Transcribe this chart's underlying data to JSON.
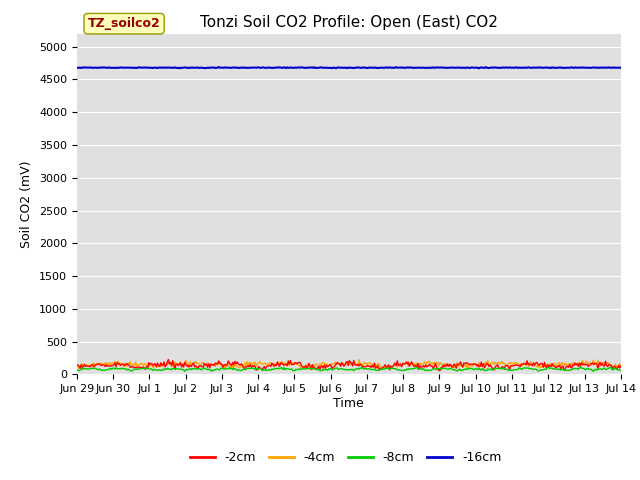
{
  "title": "Tonzi Soil CO2 Profile: Open (East) CO2",
  "ylabel": "Soil CO2 (mV)",
  "xlabel": "Time",
  "ylim": [
    0,
    5200
  ],
  "yticks": [
    0,
    500,
    1000,
    1500,
    2000,
    2500,
    3000,
    3500,
    4000,
    4500,
    5000
  ],
  "background_color": "#e0e0e0",
  "fig_bg": "#ffffff",
  "series": {
    "-2cm": {
      "color": "#ff0000",
      "mean": 130,
      "noise": 40,
      "base": 80
    },
    "-4cm": {
      "color": "#ffa500",
      "mean": 150,
      "noise": 30,
      "base": 90
    },
    "-8cm": {
      "color": "#00cc00",
      "mean": 70,
      "noise": 15,
      "base": 50
    },
    "-16cm": {
      "color": "#0000cd",
      "mean": 4680,
      "noise": 3,
      "base": 4675
    }
  },
  "n_points": 500,
  "x_start": 0,
  "x_end": 15,
  "xtick_positions": [
    0,
    1,
    2,
    3,
    4,
    5,
    6,
    7,
    8,
    9,
    10,
    11,
    12,
    13,
    14,
    15
  ],
  "xtick_labels": [
    "Jun 29",
    "Jun 30",
    "Jul 1",
    "Jul 2",
    "Jul 3",
    "Jul 4",
    "Jul 5",
    "Jul 6",
    "Jul 7",
    "Jul 8",
    "Jul 9",
    "Jul 10",
    "Jul 11",
    "Jul 12",
    "Jul 13",
    "Jul 14"
  ],
  "watermark_text": "TZ_soilco2",
  "watermark_color": "#990000",
  "watermark_bg": "#ffffbb",
  "watermark_border": "#999900",
  "legend_entries": [
    "-2cm",
    "-4cm",
    "-8cm",
    "-16cm"
  ],
  "legend_colors": [
    "#ff0000",
    "#ffa500",
    "#00cc00",
    "#0000cd"
  ],
  "title_fontsize": 11,
  "tick_fontsize": 8,
  "ylabel_fontsize": 9,
  "xlabel_fontsize": 9
}
